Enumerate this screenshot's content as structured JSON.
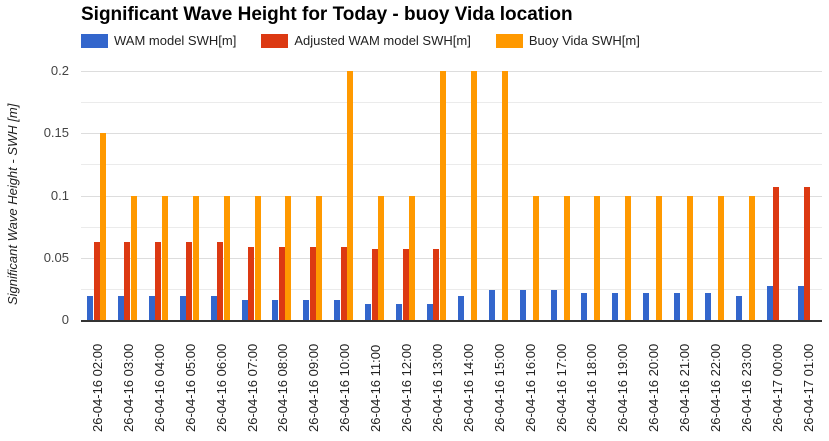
{
  "chart_data": {
    "type": "bar",
    "title": "Significant Wave Height for Today - buoy Vida location",
    "xlabel": "",
    "ylabel": "Significant Wave Height - SWH [m]",
    "ylim": [
      0,
      0.2
    ],
    "yticks": [
      "0",
      "0.05",
      "0.1",
      "0.15",
      "0.2"
    ],
    "grid": true,
    "legend_position": "top",
    "categories": [
      "26-04-16 02:00",
      "26-04-16 03:00",
      "26-04-16 04:00",
      "26-04-16 05:00",
      "26-04-16 06:00",
      "26-04-16 07:00",
      "26-04-16 08:00",
      "26-04-16 09:00",
      "26-04-16 10:00",
      "26-04-16 11:00",
      "26-04-16 12:00",
      "26-04-16 13:00",
      "26-04-16 14:00",
      "26-04-16 15:00",
      "26-04-16 16:00",
      "26-04-16 17:00",
      "26-04-16 18:00",
      "26-04-16 19:00",
      "26-04-16 20:00",
      "26-04-16 21:00",
      "26-04-16 22:00",
      "26-04-16 23:00",
      "26-04-17 00:00",
      "26-04-17 01:00"
    ],
    "series": [
      {
        "name": "WAM model SWH[m]",
        "color": "#3366cc",
        "values": [
          0.019,
          0.019,
          0.019,
          0.019,
          0.019,
          0.016,
          0.016,
          0.016,
          0.016,
          0.013,
          0.013,
          0.013,
          0.019,
          0.024,
          0.024,
          0.024,
          0.022,
          0.022,
          0.022,
          0.022,
          0.022,
          0.019,
          0.027,
          0.027
        ]
      },
      {
        "name": "Adjusted WAM model SWH[m]",
        "color": "#dc3912",
        "values": [
          0.063,
          0.063,
          0.063,
          0.063,
          0.063,
          0.059,
          0.059,
          0.059,
          0.059,
          0.057,
          0.057,
          0.057,
          null,
          null,
          null,
          null,
          null,
          null,
          null,
          null,
          null,
          null,
          0.107,
          0.107
        ]
      },
      {
        "name": "Buoy Vida SWH[m]",
        "color": "#ff9900",
        "values": [
          0.15,
          0.1,
          0.1,
          0.1,
          0.1,
          0.1,
          0.1,
          0.1,
          0.2,
          0.1,
          0.1,
          0.2,
          0.2,
          0.2,
          0.1,
          0.1,
          0.1,
          0.1,
          0.1,
          0.1,
          0.1,
          0.1,
          null,
          null
        ]
      }
    ]
  }
}
